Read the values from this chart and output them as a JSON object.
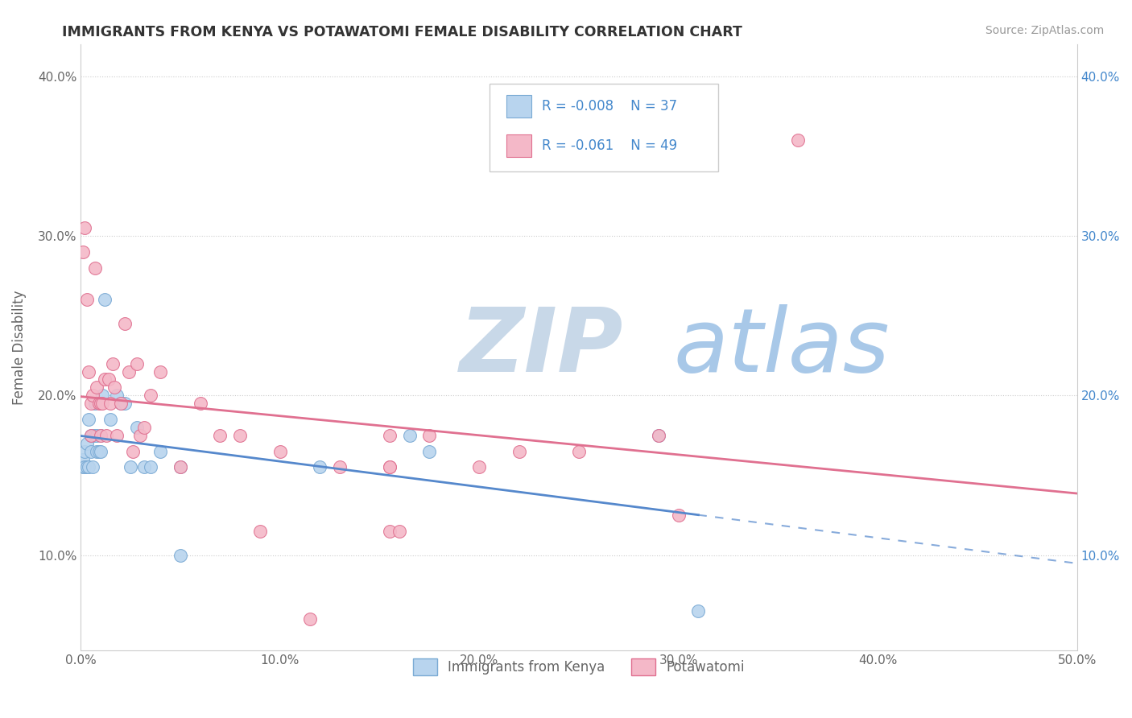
{
  "title": "IMMIGRANTS FROM KENYA VS POTAWATOMI FEMALE DISABILITY CORRELATION CHART",
  "source": "Source: ZipAtlas.com",
  "ylabel": "Female Disability",
  "watermark_zip": "ZIP",
  "watermark_atlas": "atlas",
  "xlim": [
    0.0,
    0.5
  ],
  "ylim": [
    0.04,
    0.42
  ],
  "yticks": [
    0.1,
    0.2,
    0.3,
    0.4
  ],
  "ytick_labels": [
    "10.0%",
    "20.0%",
    "30.0%",
    "40.0%"
  ],
  "xticks": [
    0.0,
    0.1,
    0.2,
    0.3,
    0.4,
    0.5
  ],
  "xtick_labels": [
    "0.0%",
    "10.0%",
    "20.0%",
    "30.0%",
    "40.0%",
    "50.0%"
  ],
  "series": [
    {
      "name": "Immigrants from Kenya",
      "R": -0.008,
      "N": 37,
      "color": "#b8d4ee",
      "edge_color": "#7aaad4",
      "line_color": "#5588cc",
      "line_dash": "solid",
      "line_dash_ext": "dashed",
      "x": [
        0.001,
        0.001,
        0.002,
        0.002,
        0.003,
        0.003,
        0.004,
        0.004,
        0.005,
        0.005,
        0.006,
        0.006,
        0.007,
        0.007,
        0.008,
        0.008,
        0.009,
        0.01,
        0.01,
        0.011,
        0.012,
        0.015,
        0.018,
        0.02,
        0.022,
        0.025,
        0.028,
        0.032,
        0.04,
        0.05,
        0.12,
        0.165,
        0.175,
        0.29,
        0.31,
        0.05,
        0.035
      ],
      "y": [
        0.155,
        0.16,
        0.155,
        0.165,
        0.155,
        0.17,
        0.185,
        0.155,
        0.165,
        0.175,
        0.155,
        0.175,
        0.195,
        0.175,
        0.165,
        0.175,
        0.165,
        0.175,
        0.165,
        0.2,
        0.26,
        0.185,
        0.2,
        0.195,
        0.195,
        0.155,
        0.18,
        0.155,
        0.165,
        0.155,
        0.155,
        0.175,
        0.165,
        0.175,
        0.065,
        0.1,
        0.155
      ]
    },
    {
      "name": "Potawatomi",
      "R": -0.061,
      "N": 49,
      "color": "#f4b8c8",
      "edge_color": "#e07090",
      "line_color": "#e07090",
      "line_dash": "solid",
      "x": [
        0.001,
        0.002,
        0.003,
        0.004,
        0.005,
        0.005,
        0.006,
        0.007,
        0.008,
        0.009,
        0.01,
        0.01,
        0.011,
        0.012,
        0.013,
        0.014,
        0.015,
        0.016,
        0.017,
        0.018,
        0.02,
        0.022,
        0.024,
        0.026,
        0.028,
        0.03,
        0.032,
        0.035,
        0.04,
        0.05,
        0.06,
        0.07,
        0.08,
        0.09,
        0.1,
        0.13,
        0.155,
        0.2,
        0.22,
        0.25,
        0.3,
        0.155,
        0.16,
        0.115,
        0.175,
        0.155,
        0.29,
        0.155,
        0.36
      ],
      "y": [
        0.29,
        0.305,
        0.26,
        0.215,
        0.195,
        0.175,
        0.2,
        0.28,
        0.205,
        0.195,
        0.195,
        0.175,
        0.195,
        0.21,
        0.175,
        0.21,
        0.195,
        0.22,
        0.205,
        0.175,
        0.195,
        0.245,
        0.215,
        0.165,
        0.22,
        0.175,
        0.18,
        0.2,
        0.215,
        0.155,
        0.195,
        0.175,
        0.175,
        0.115,
        0.165,
        0.155,
        0.175,
        0.155,
        0.165,
        0.165,
        0.125,
        0.115,
        0.115,
        0.06,
        0.175,
        0.155,
        0.175,
        0.155,
        0.36
      ]
    }
  ],
  "title_color": "#333333",
  "axis_color": "#666666",
  "grid_color": "#cccccc",
  "background_color": "#ffffff",
  "watermark_color_zip": "#c8d8e8",
  "watermark_color_atlas": "#a8c8e8",
  "source_color": "#999999",
  "legend_text_color": "#4488cc"
}
